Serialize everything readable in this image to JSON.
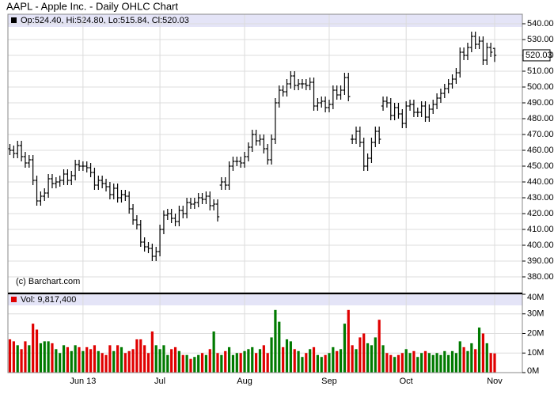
{
  "chart_data": {
    "type": "ohlc",
    "title": "AAPL - Apple Inc. - Daily OHLC Chart",
    "info": "Op:524.40, Hi:524.80, Lo:515.84, Cl:520.03",
    "credit": "(c) Barchart.com",
    "color": "#000000",
    "grid": true,
    "categories": [
      null,
      null,
      null,
      null,
      null,
      null,
      null,
      null,
      null,
      null,
      null,
      null,
      null,
      null,
      null,
      null,
      null,
      null,
      null,
      "Jun 13",
      null,
      null,
      null,
      null,
      null,
      null,
      null,
      null,
      null,
      null,
      null,
      null,
      null,
      null,
      null,
      null,
      null,
      null,
      null,
      "Jul",
      null,
      null,
      null,
      null,
      null,
      null,
      null,
      null,
      null,
      null,
      null,
      null,
      null,
      null,
      null,
      null,
      null,
      null,
      null,
      null,
      null,
      "Aug",
      null,
      null,
      null,
      null,
      null,
      null,
      null,
      null,
      null,
      null,
      null,
      null,
      null,
      null,
      null,
      null,
      null,
      null,
      null,
      null,
      null,
      "Sep",
      null,
      null,
      null,
      null,
      null,
      null,
      null,
      null,
      null,
      null,
      null,
      null,
      null,
      null,
      null,
      null,
      null,
      null,
      null,
      "Oct",
      null,
      null,
      null,
      null,
      null,
      null,
      null,
      null,
      null,
      null,
      null,
      null,
      null,
      null,
      null,
      null,
      null,
      null,
      null,
      null,
      null,
      null,
      "Nov"
    ],
    "open": [
      461,
      460,
      458,
      463,
      456,
      452,
      454,
      441,
      428,
      431,
      433,
      442,
      439,
      440,
      441,
      445,
      441,
      444,
      451,
      450,
      450,
      449,
      446,
      438,
      441,
      439,
      437,
      432,
      436,
      430,
      432,
      431,
      423,
      416,
      413,
      402,
      399,
      398,
      393,
      396,
      410,
      419,
      420,
      417,
      415,
      422,
      420,
      427,
      426,
      427,
      430,
      429,
      431,
      425,
      426,
      438,
      440,
      438,
      450,
      453,
      453,
      452,
      456,
      462,
      470,
      466,
      467,
      461,
      454,
      467,
      490,
      498,
      497,
      502,
      507,
      501,
      502,
      502,
      501,
      503,
      488,
      490,
      491,
      487,
      489,
      498,
      495,
      498,
      506,
      467,
      467,
      472,
      465,
      450,
      455,
      465,
      472,
      488,
      491,
      490,
      482,
      487,
      483,
      477,
      488,
      489,
      484,
      484,
      488,
      481,
      486,
      489,
      493,
      496,
      499,
      502,
      505,
      509,
      522,
      520,
      525,
      532,
      527,
      529,
      517,
      525,
      524.4
    ],
    "high": [
      464,
      463,
      466,
      466,
      459,
      457,
      457,
      444,
      434,
      436,
      445,
      445,
      443,
      444,
      448,
      448,
      447,
      454,
      454,
      453,
      453,
      452,
      449,
      444,
      444,
      442,
      440,
      439,
      439,
      435,
      435,
      434,
      426,
      419,
      416,
      405,
      402,
      401,
      399,
      413,
      422,
      423,
      423,
      420,
      425,
      425,
      430,
      430,
      430,
      433,
      433,
      434,
      434,
      429,
      429,
      443,
      443,
      453,
      456,
      456,
      456,
      459,
      465,
      473,
      473,
      470,
      470,
      464,
      470,
      493,
      501,
      501,
      505,
      510,
      510,
      505,
      505,
      505,
      506,
      506,
      493,
      494,
      494,
      492,
      501,
      501,
      501,
      509,
      509,
      470,
      475,
      475,
      468,
      458,
      468,
      475,
      475,
      494,
      494,
      493,
      490,
      490,
      486,
      491,
      492,
      492,
      487,
      491,
      491,
      489,
      492,
      496,
      499,
      502,
      505,
      508,
      512,
      525,
      525,
      528,
      535,
      535,
      532,
      532,
      528,
      528,
      524.8
    ],
    "low": [
      457,
      455,
      455,
      453,
      449,
      449,
      438,
      425,
      425,
      428,
      430,
      436,
      436,
      437,
      438,
      438,
      438,
      441,
      447,
      447,
      446,
      443,
      435,
      435,
      436,
      434,
      429,
      429,
      427,
      427,
      428,
      420,
      413,
      410,
      399,
      396,
      395,
      390,
      390,
      393,
      407,
      416,
      414,
      412,
      412,
      417,
      417,
      423,
      423,
      424,
      426,
      426,
      422,
      422,
      415,
      435,
      435,
      435,
      447,
      450,
      449,
      449,
      453,
      459,
      463,
      463,
      458,
      451,
      451,
      464,
      487,
      494,
      494,
      499,
      498,
      498,
      499,
      498,
      498,
      485,
      485,
      487,
      484,
      484,
      486,
      492,
      492,
      495,
      491,
      464,
      464,
      462,
      447,
      447,
      452,
      462,
      464,
      485,
      487,
      479,
      479,
      480,
      474,
      474,
      485,
      481,
      481,
      481,
      478,
      478,
      483,
      486,
      490,
      493,
      496,
      499,
      502,
      506,
      517,
      517,
      522,
      524,
      524,
      514,
      514,
      519,
      515.84
    ],
    "close": [
      460,
      458,
      463,
      456,
      452,
      454,
      441,
      428,
      431,
      433,
      442,
      439,
      440,
      441,
      445,
      441,
      444,
      451,
      450,
      450,
      449,
      446,
      438,
      441,
      439,
      437,
      432,
      436,
      430,
      432,
      431,
      423,
      416,
      413,
      402,
      399,
      398,
      393,
      396,
      410,
      419,
      420,
      417,
      415,
      422,
      420,
      427,
      426,
      427,
      430,
      429,
      431,
      425,
      426,
      418,
      440,
      438,
      450,
      453,
      453,
      452,
      456,
      462,
      470,
      466,
      467,
      461,
      454,
      467,
      490,
      498,
      497,
      502,
      507,
      501,
      502,
      502,
      501,
      503,
      488,
      490,
      491,
      487,
      489,
      498,
      495,
      498,
      506,
      494,
      467,
      472,
      465,
      450,
      455,
      465,
      472,
      467,
      491,
      490,
      482,
      487,
      483,
      477,
      488,
      489,
      484,
      484,
      488,
      481,
      486,
      489,
      493,
      496,
      499,
      502,
      505,
      509,
      522,
      520,
      525,
      532,
      527,
      529,
      517,
      525,
      522,
      520.03
    ],
    "ylim": [
      370,
      546
    ],
    "yticks": [
      {
        "value": 380,
        "label": "380.00"
      },
      {
        "value": 390,
        "label": "390.00"
      },
      {
        "value": 400,
        "label": "400.00"
      },
      {
        "value": 410,
        "label": "410.00"
      },
      {
        "value": 420,
        "label": "420.00"
      },
      {
        "value": 430,
        "label": "430.00"
      },
      {
        "value": 440,
        "label": "440.00"
      },
      {
        "value": 450,
        "label": "450.00"
      },
      {
        "value": 460,
        "label": "460.00"
      },
      {
        "value": 470,
        "label": "470.00"
      },
      {
        "value": 480,
        "label": "480.00"
      },
      {
        "value": 490,
        "label": "490.00"
      },
      {
        "value": 500,
        "label": "500.00"
      },
      {
        "value": 510,
        "label": "510.00"
      },
      {
        "value": 520,
        "label": "520.00"
      },
      {
        "value": 530,
        "label": "530.00"
      },
      {
        "value": 540,
        "label": "540.00"
      }
    ],
    "volume": {
      "label": "Vol: 9,817,400",
      "up_color": "#007a00",
      "down_color": "#e00000",
      "values": [
        17000000,
        16000000,
        14000000,
        12000000,
        16000000,
        14000000,
        25000000,
        22000000,
        15000000,
        16000000,
        16000000,
        15000000,
        12000000,
        10000000,
        14000000,
        13000000,
        11000000,
        14000000,
        13000000,
        11000000,
        13000000,
        12000000,
        14000000,
        11000000,
        10000000,
        9000000,
        14000000,
        11000000,
        14000000,
        13000000,
        10000000,
        11000000,
        12000000,
        17000000,
        17000000,
        14000000,
        10000000,
        21000000,
        14000000,
        12000000,
        14000000,
        9000000,
        12000000,
        13000000,
        11000000,
        9000000,
        9000000,
        7000000,
        8000000,
        9000000,
        10000000,
        9000000,
        12000000,
        21000000,
        10000000,
        9000000,
        11000000,
        13000000,
        9000000,
        10000000,
        10000000,
        11000000,
        12000000,
        13000000,
        10000000,
        12000000,
        14000000,
        10000000,
        18000000,
        32000000,
        26000000,
        13000000,
        17000000,
        16000000,
        12000000,
        11000000,
        8000000,
        10000000,
        12000000,
        13000000,
        9000000,
        8000000,
        9000000,
        10000000,
        13000000,
        11000000,
        12000000,
        25000000,
        32000000,
        14000000,
        12000000,
        18000000,
        20000000,
        15000000,
        14000000,
        18000000,
        27000000,
        14000000,
        10000000,
        9000000,
        8000000,
        9000000,
        10000000,
        12000000,
        10000000,
        11000000,
        8000000,
        10000000,
        11000000,
        10000000,
        9000000,
        10000000,
        9000000,
        11000000,
        9000000,
        11000000,
        10000000,
        16000000,
        13000000,
        11000000,
        15000000,
        12000000,
        23000000,
        20000000,
        15000000,
        10000000,
        9817400
      ],
      "ylim": [
        0,
        40000000
      ],
      "yticks": [
        {
          "value": 0,
          "label": "0M"
        },
        {
          "value": 10000000,
          "label": "10M"
        },
        {
          "value": 20000000,
          "label": "20M"
        },
        {
          "value": 30000000,
          "label": "30M"
        },
        {
          "value": 40000000,
          "label": "40M"
        }
      ]
    }
  }
}
